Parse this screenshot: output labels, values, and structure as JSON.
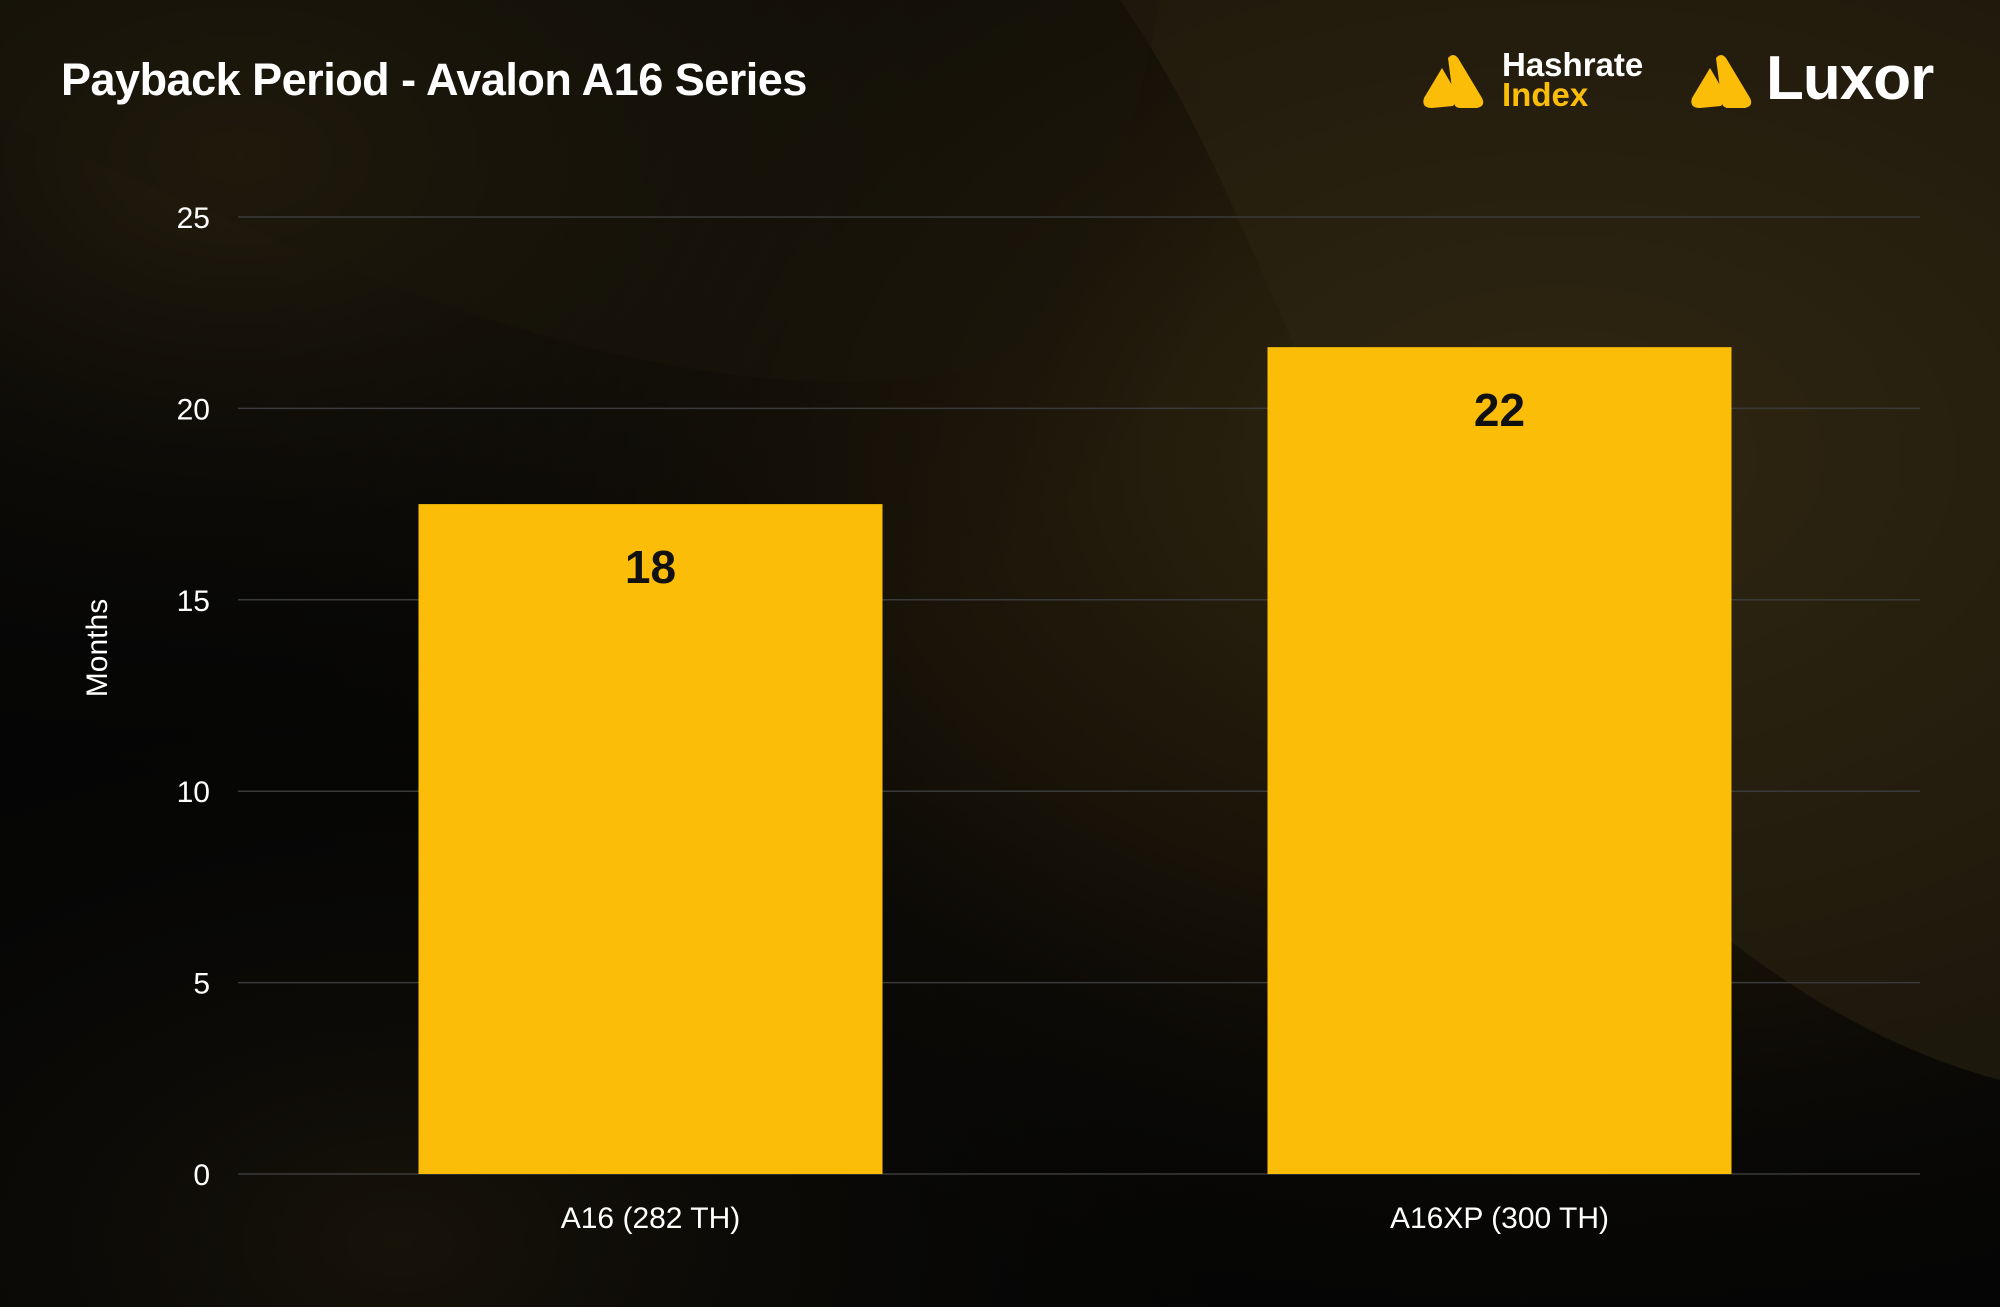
{
  "header": {
    "title": "Payback Period - Avalon A16 Series"
  },
  "logos": {
    "hashrate_index": {
      "line1": "Hashrate",
      "line2": "Index",
      "icon": "hashrate-index-logo-icon"
    },
    "luxor": {
      "word": "Luxor",
      "icon": "luxor-logo-icon"
    }
  },
  "colors": {
    "bar": "#fbbd08",
    "background": "#050505",
    "accent": "#fbbd08"
  },
  "chart_data": {
    "type": "bar",
    "title": "Payback Period - Avalon A16 Series",
    "xlabel": "",
    "ylabel": "Months",
    "categories": [
      "A16 (282 TH)",
      "A16XP (300 TH)"
    ],
    "values": [
      17.5,
      21.6
    ],
    "data_labels": [
      "18",
      "22"
    ],
    "ylim": [
      0,
      25
    ],
    "yticks": [
      0,
      5,
      10,
      15,
      20,
      25
    ],
    "grid": true,
    "legend": "none"
  }
}
